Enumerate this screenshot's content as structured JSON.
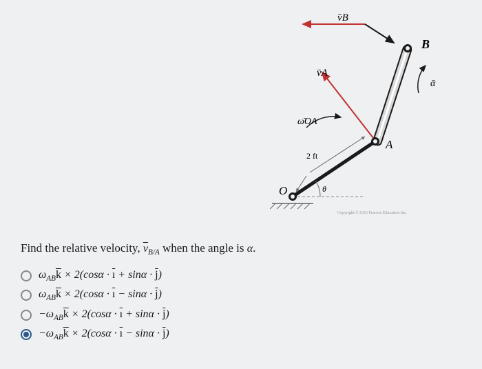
{
  "question_prefix": "Find the relative velocity, ",
  "question_var": "v",
  "question_sub": "B/A",
  "question_suffix": " when the angle is ",
  "question_alpha": "α",
  "question_end": ".",
  "options": [
    {
      "omega_sign": "",
      "inner": "cosα · ī + sinα · j̄",
      "selected": false
    },
    {
      "omega_sign": "",
      "inner": "cosα · ī − sinα · j̄",
      "selected": false
    },
    {
      "omega_sign": "−",
      "inner": "cosα · ī + sinα · j̄",
      "selected": false
    },
    {
      "omega_sign": "−",
      "inner": "cosα · ī − sinα · j̄",
      "selected": true
    }
  ],
  "diagram": {
    "labels": {
      "vB": "v̄B",
      "vA": "v̄A",
      "wOA": "ω̄OA",
      "O": "O",
      "A": "A",
      "B": "B",
      "two_ft": "2 ft",
      "theta": "θ",
      "alpha": "ᾱ"
    },
    "colors": {
      "red": "#c23030",
      "black": "#1a1a1a",
      "gray": "#666",
      "light": "#ccc"
    }
  }
}
